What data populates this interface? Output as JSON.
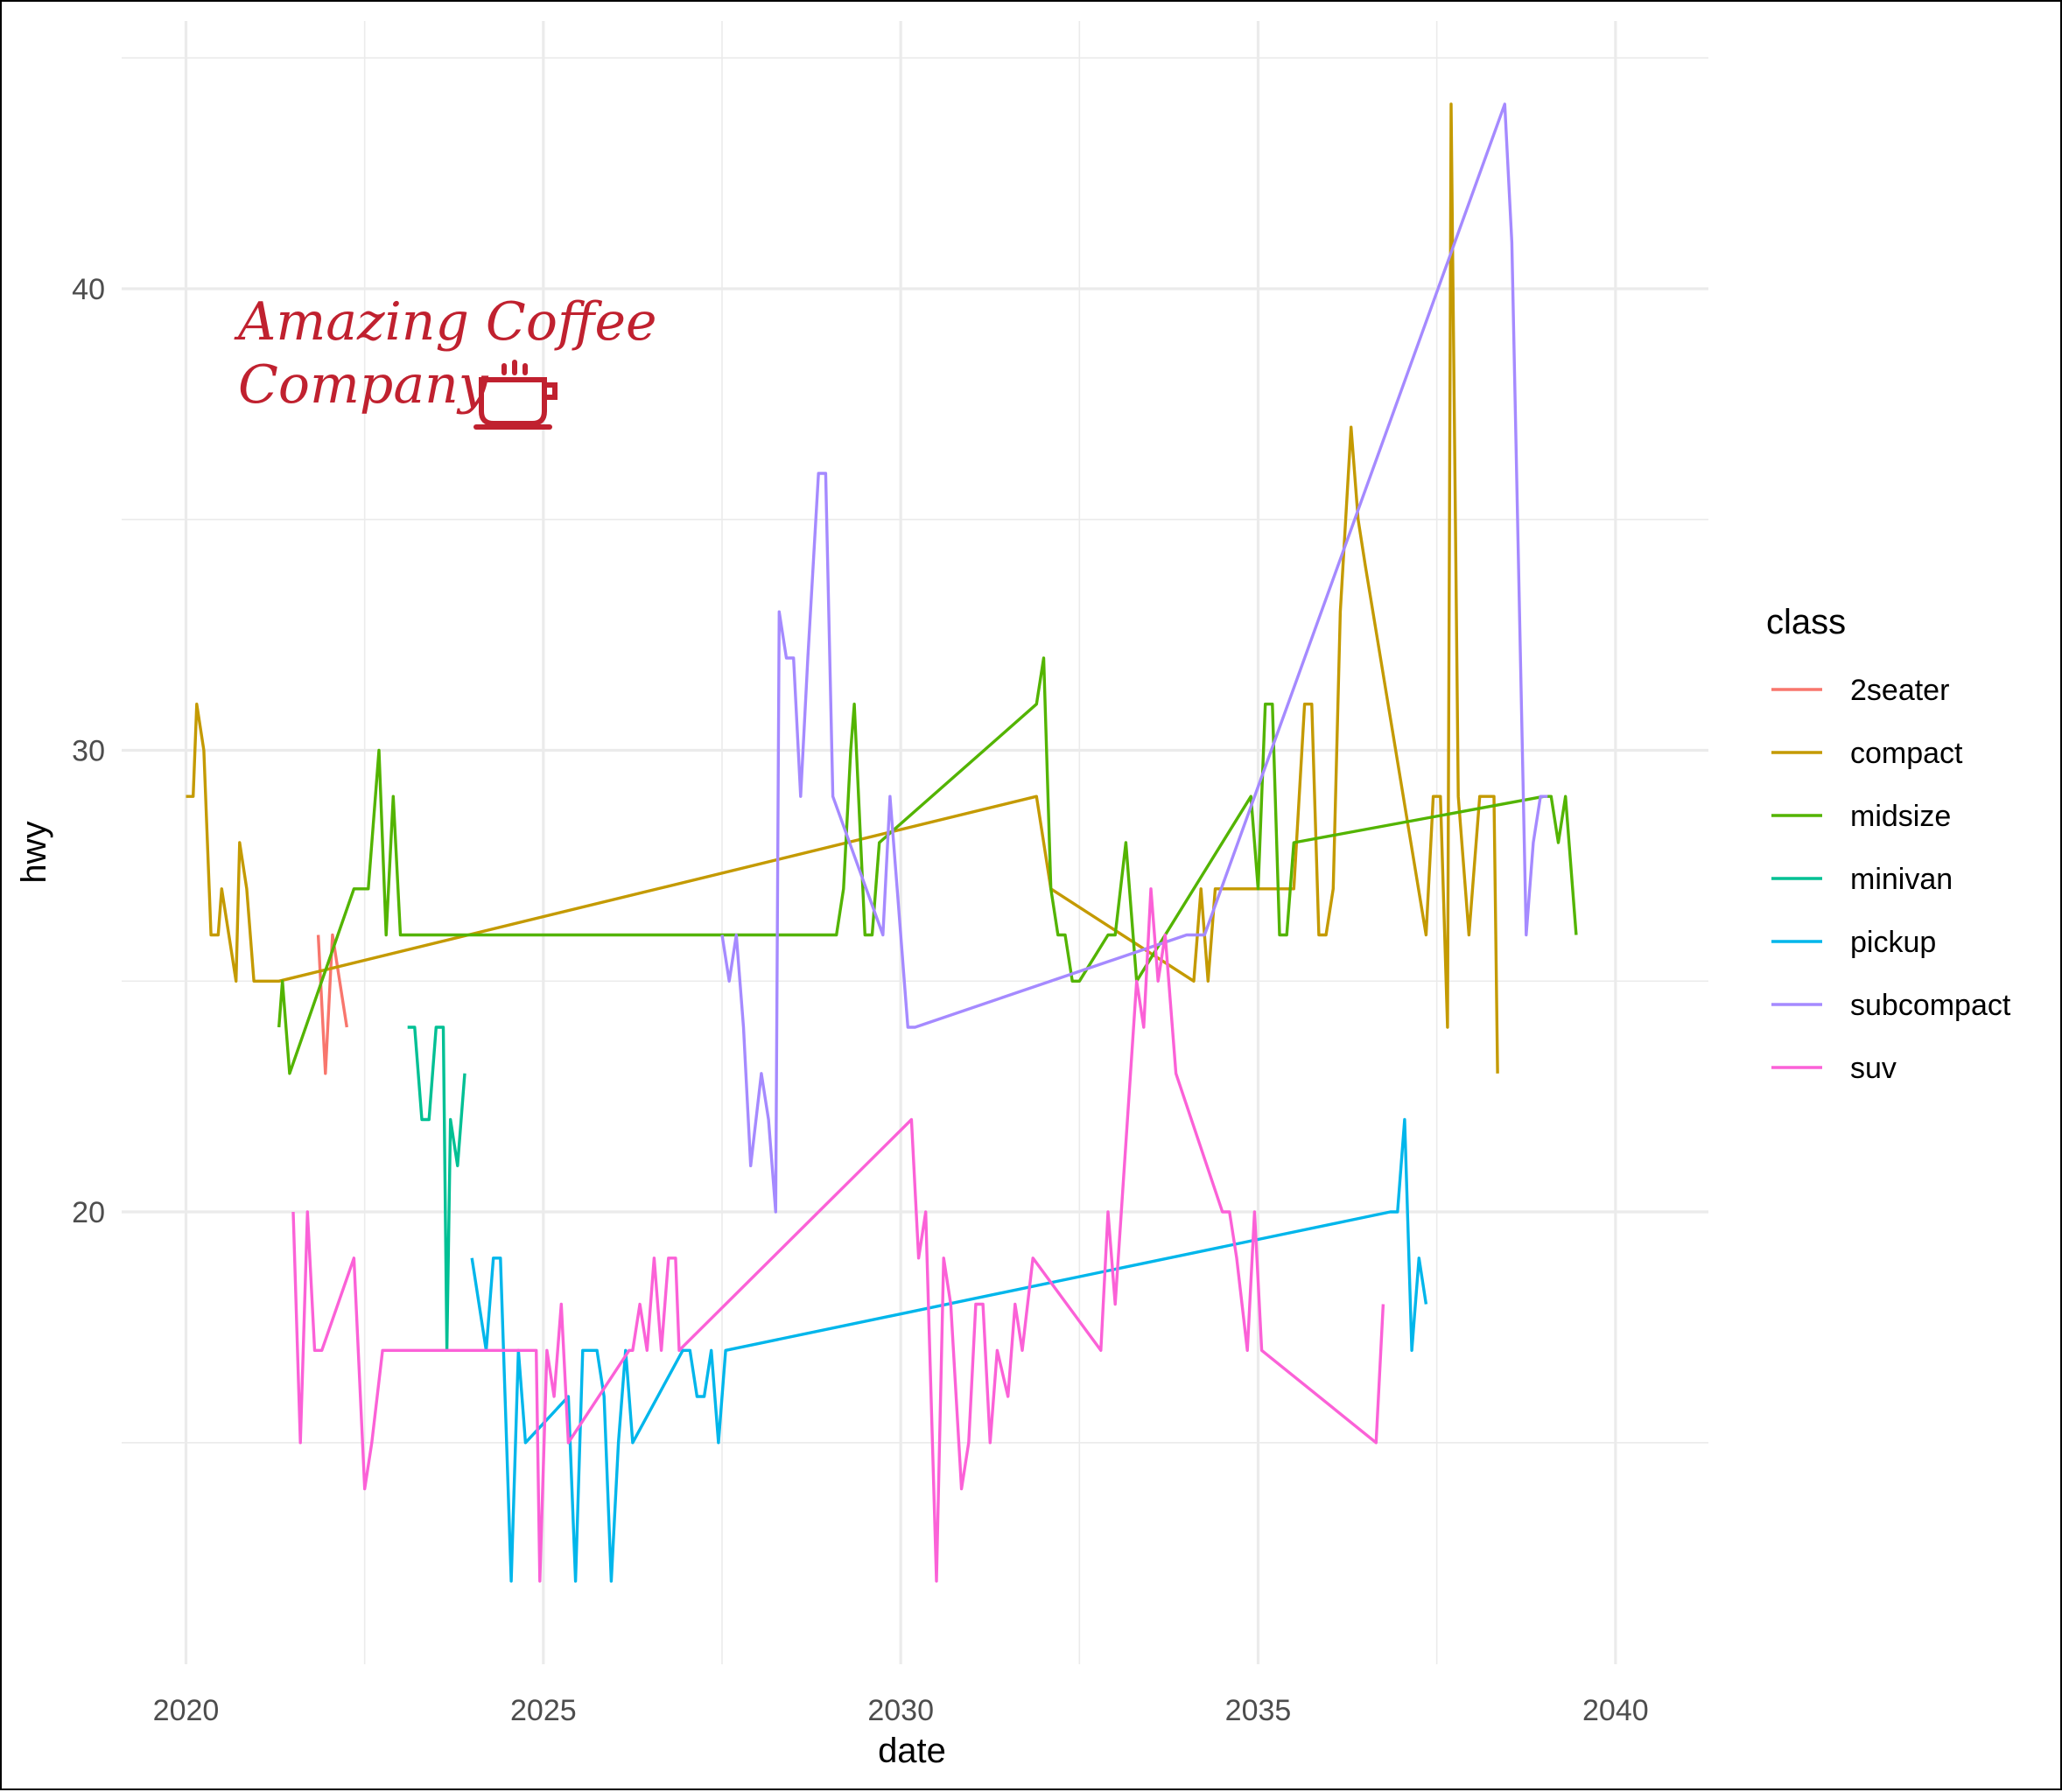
{
  "chart_data": {
    "type": "line",
    "title": "",
    "xlabel": "date",
    "ylabel": "hwy",
    "xlim": [
      2019.1,
      2041.3
    ],
    "ylim": [
      10.2,
      45.8
    ],
    "x_ticks": [
      2020,
      2025,
      2030,
      2035,
      2040
    ],
    "y_ticks": [
      20,
      30,
      40
    ],
    "grid": true,
    "legend": {
      "title": "class",
      "position": "right"
    },
    "series": [
      {
        "name": "2seater",
        "color": "#F8766D",
        "x": [
          2021.85,
          2021.95,
          2022.05,
          2022.15,
          2022.25
        ],
        "y": [
          26,
          23,
          26,
          25,
          24
        ]
      },
      {
        "name": "compact",
        "color": "#C49A00",
        "x": [
          2020.0,
          2020.1,
          2020.15,
          2020.25,
          2020.35,
          2020.45,
          2020.5,
          2020.6,
          2020.7,
          2020.75,
          2020.85,
          2020.95,
          2021.05,
          2021.15,
          2021.3,
          2031.9,
          2032.1,
          2034.1,
          2034.2,
          2034.3,
          2034.4,
          2035.5,
          2035.65,
          2035.75,
          2035.85,
          2035.95,
          2036.05,
          2036.15,
          2036.3,
          2036.4,
          2036.5,
          2037.35,
          2037.45,
          2037.55,
          2037.65,
          2037.7,
          2037.8,
          2037.95,
          2038.1,
          2038.3,
          2038.35
        ],
        "y": [
          29,
          29,
          31,
          30,
          26,
          26,
          27,
          26,
          25,
          28,
          27,
          25,
          25,
          25,
          25,
          29,
          27,
          25,
          27,
          25,
          27,
          27,
          31,
          31,
          26,
          26,
          27,
          33,
          37,
          35,
          34,
          26,
          29,
          29,
          24,
          44,
          29,
          26,
          29,
          29,
          23
        ]
      },
      {
        "name": "midsize",
        "color": "#53B400",
        "x": [
          2021.3,
          2021.35,
          2021.45,
          2022.35,
          2022.55,
          2022.7,
          2022.8,
          2022.9,
          2023.0,
          2029.0,
          2029.1,
          2029.2,
          2029.3,
          2029.35,
          2029.5,
          2029.6,
          2029.7,
          2031.9,
          2032.0,
          2032.1,
          2032.2,
          2032.3,
          2032.4,
          2032.5,
          2032.9,
          2033.0,
          2033.15,
          2033.3,
          2034.9,
          2035.0,
          2035.1,
          2035.2,
          2035.3,
          2035.4,
          2035.5,
          2039.0,
          2039.1,
          2039.2,
          2039.3,
          2039.45
        ],
        "y": [
          24,
          25,
          23,
          27,
          27,
          30,
          26,
          29,
          26,
          26,
          26,
          27,
          30,
          31,
          26,
          26,
          28,
          31,
          32,
          27,
          26,
          26,
          25,
          25,
          26,
          26,
          28,
          25,
          29,
          27,
          31,
          31,
          26,
          26,
          28,
          29,
          29,
          28,
          29,
          26
        ]
      },
      {
        "name": "minivan",
        "color": "#00C094",
        "x": [
          2023.1,
          2023.2,
          2023.3,
          2023.4,
          2023.5,
          2023.6,
          2023.65,
          2023.7,
          2023.8,
          2023.9
        ],
        "y": [
          24,
          24,
          22,
          22,
          24,
          24,
          17,
          22,
          21,
          23
        ]
      },
      {
        "name": "pickup",
        "color": "#00B6EB",
        "x": [
          2024.0,
          2024.2,
          2024.3,
          2024.4,
          2024.55,
          2024.65,
          2024.75,
          2025.35,
          2025.45,
          2025.55,
          2025.75,
          2025.85,
          2025.95,
          2026.05,
          2026.15,
          2026.25,
          2026.95,
          2027.05,
          2027.15,
          2027.25,
          2027.35,
          2027.45,
          2027.55,
          2036.85,
          2036.95,
          2037.05,
          2037.15,
          2037.25,
          2037.35
        ],
        "y": [
          19,
          17,
          19,
          19,
          12,
          17,
          15,
          16,
          12,
          17,
          17,
          16,
          12,
          15,
          17,
          15,
          17,
          17,
          16,
          16,
          17,
          15,
          17,
          20,
          20,
          22,
          17,
          19,
          18
        ]
      },
      {
        "name": "subcompact",
        "color": "#A58AFF",
        "x": [
          2027.5,
          2027.6,
          2027.7,
          2027.8,
          2027.9,
          2028.05,
          2028.15,
          2028.25,
          2028.3,
          2028.4,
          2028.5,
          2028.6,
          2028.7,
          2028.85,
          2028.95,
          2029.05,
          2029.75,
          2029.85,
          2029.95,
          2030.1,
          2030.2,
          2034.0,
          2034.25,
          2038.45,
          2038.55,
          2038.75,
          2038.85,
          2038.95,
          2039.05
        ],
        "y": [
          26,
          25,
          26,
          24,
          21,
          23,
          22,
          20,
          33,
          32,
          32,
          29,
          32,
          36,
          36,
          29,
          26,
          29,
          27,
          24,
          24,
          26,
          26,
          44,
          41,
          26,
          28,
          29,
          29
        ]
      },
      {
        "name": "suv",
        "color": "#FB61D7",
        "x": [
          2021.5,
          2021.6,
          2021.7,
          2021.8,
          2021.9,
          2022.35,
          2022.5,
          2022.6,
          2022.75,
          2024.9,
          2024.95,
          2025.05,
          2025.15,
          2025.25,
          2025.35,
          2026.2,
          2026.25,
          2026.35,
          2026.45,
          2026.55,
          2026.65,
          2026.75,
          2026.85,
          2026.9,
          2030.15,
          2030.25,
          2030.35,
          2030.5,
          2030.6,
          2030.7,
          2030.85,
          2030.95,
          2031.05,
          2031.15,
          2031.25,
          2031.35,
          2031.5,
          2031.6,
          2031.7,
          2031.85,
          2032.8,
          2032.9,
          2033.0,
          2033.3,
          2033.4,
          2033.5,
          2033.6,
          2033.7,
          2033.85,
          2034.5,
          2034.6,
          2034.7,
          2034.85,
          2034.95,
          2035.05,
          2036.65,
          2036.75
        ],
        "y": [
          20,
          15,
          20,
          17,
          17,
          19,
          14,
          15,
          17,
          17,
          12,
          17,
          16,
          18,
          15,
          17,
          17,
          18,
          17,
          19,
          17,
          19,
          19,
          17,
          22,
          19,
          20,
          12,
          19,
          18,
          14,
          15,
          18,
          18,
          15,
          17,
          16,
          18,
          17,
          19,
          17,
          20,
          18,
          25,
          24,
          27,
          25,
          26,
          23,
          20,
          20,
          19,
          17,
          20,
          17,
          15,
          18
        ]
      }
    ]
  },
  "logo": {
    "line1": "Amazing Coffee",
    "line2": "Company",
    "icon": "coffee-cup-icon",
    "color": "#C0212F"
  }
}
